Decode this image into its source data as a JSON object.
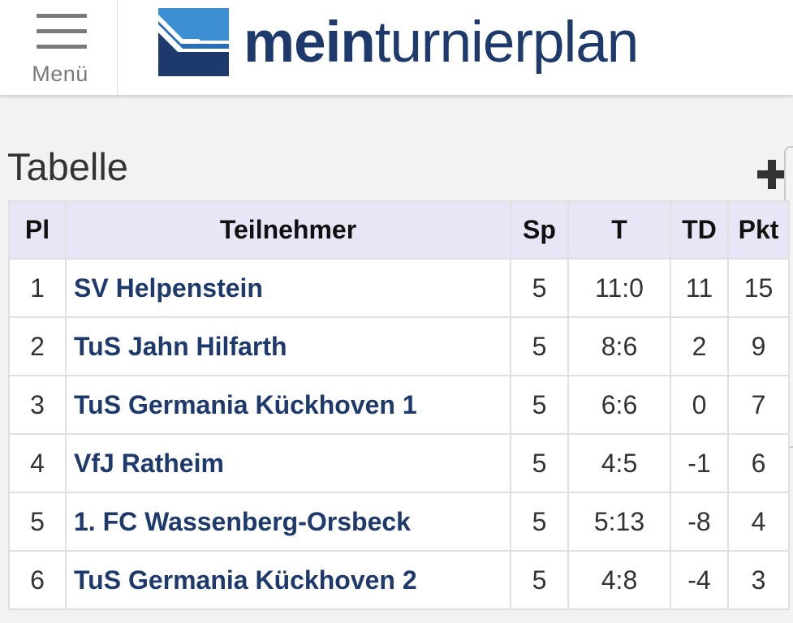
{
  "header": {
    "menu_label": "Menü",
    "logo_bold": "mein",
    "logo_rest": "turnierplan",
    "brand_color": "#1e3a6d"
  },
  "section": {
    "title": "Tabelle",
    "expand_icon": "plus-icon"
  },
  "table": {
    "columns": [
      "Pl",
      "Teilnehmer",
      "Sp",
      "T",
      "TD",
      "Pkt"
    ],
    "rows": [
      {
        "pl": "1",
        "team": "SV Helpenstein",
        "sp": "5",
        "t": "11:0",
        "td": "11",
        "pkt": "15"
      },
      {
        "pl": "2",
        "team": "TuS Jahn Hilfarth",
        "sp": "5",
        "t": "8:6",
        "td": "2",
        "pkt": "9"
      },
      {
        "pl": "3",
        "team": "TuS Germania Kückhoven 1",
        "sp": "5",
        "t": "6:6",
        "td": "0",
        "pkt": "7"
      },
      {
        "pl": "4",
        "team": "VfJ Ratheim",
        "sp": "5",
        "t": "4:5",
        "td": "-1",
        "pkt": "6"
      },
      {
        "pl": "5",
        "team": "1. FC Wassenberg-Orsbeck",
        "sp": "5",
        "t": "5:13",
        "td": "-8",
        "pkt": "4"
      },
      {
        "pl": "6",
        "team": "TuS Germania Kückhoven 2",
        "sp": "5",
        "t": "4:8",
        "td": "-4",
        "pkt": "3"
      }
    ]
  }
}
